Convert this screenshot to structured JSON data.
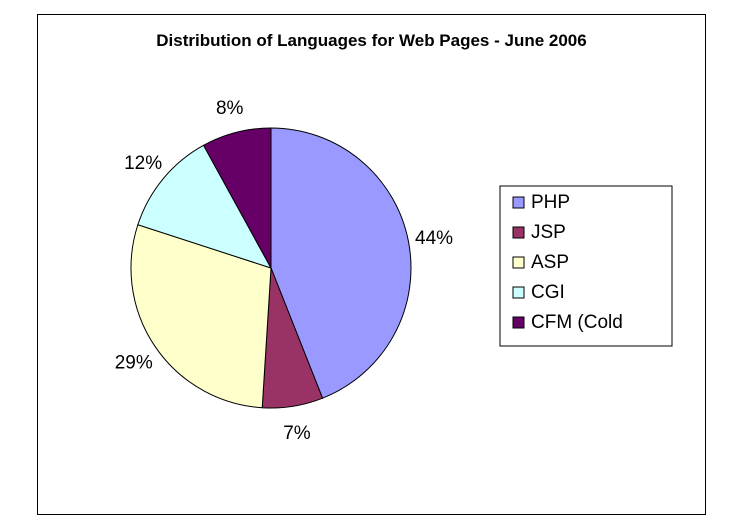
{
  "chart_data": {
    "type": "pie",
    "title": "Distribution of Languages for Web Pages - June 2006",
    "categories": [
      "PHP",
      "JSP",
      "ASP",
      "CGI",
      "CFM (Cold"
    ],
    "values": [
      44,
      7,
      29,
      12,
      8
    ],
    "value_labels": [
      "44%",
      "7%",
      "29%",
      "12%",
      "8%"
    ],
    "colors": [
      "#9999FF",
      "#993366",
      "#FFFFCC",
      "#CCFFFF",
      "#660066"
    ],
    "start_angle_deg": 0,
    "direction": "clockwise",
    "legend_position": "right"
  }
}
